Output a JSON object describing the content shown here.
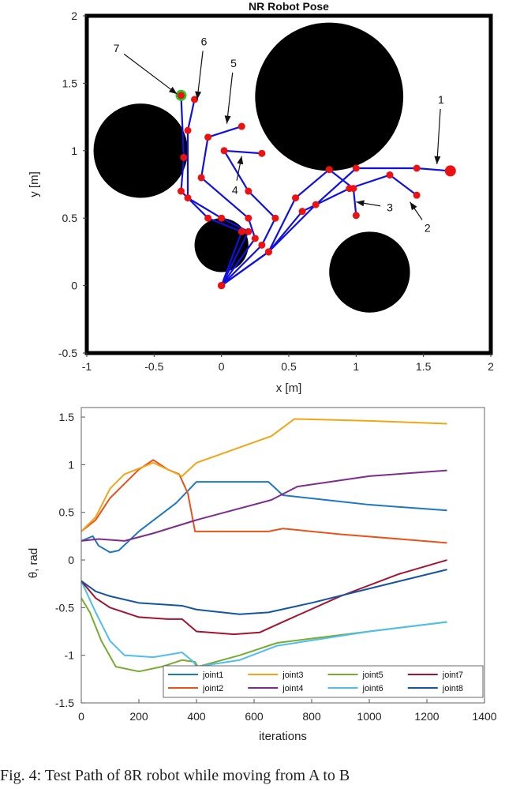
{
  "chart_data": [
    {
      "type": "scatter",
      "title": "NR Robot Pose",
      "xlabel": "x [m]",
      "ylabel": "y [m]",
      "xlim": [
        -1,
        2
      ],
      "ylim": [
        -0.5,
        2
      ],
      "xticks": [
        "-1",
        "-0.5",
        "0",
        "0.5",
        "1",
        "1.5",
        "2"
      ],
      "yticks": [
        "-0.5",
        "0",
        "0.5",
        "1",
        "1.5",
        "2"
      ],
      "grid": false,
      "obstacles": [
        {
          "x": 0.8,
          "y": 1.4,
          "r": 0.55
        },
        {
          "x": -0.6,
          "y": 1.0,
          "r": 0.35
        },
        {
          "x": 1.1,
          "y": 0.1,
          "r": 0.3
        },
        {
          "x": 0.0,
          "y": 0.3,
          "r": 0.2
        }
      ],
      "colors": {
        "obstacle": "#000000",
        "link": "#1010e0",
        "joint": "#ee1111",
        "goal": "#22cc22"
      },
      "poses": [
        {
          "label": "1",
          "points": [
            [
              0,
              0
            ],
            [
              0.35,
              0.25
            ],
            [
              0.7,
              0.6
            ],
            [
              1.0,
              0.87
            ],
            [
              1.45,
              0.87
            ],
            [
              1.7,
              0.85
            ]
          ]
        },
        {
          "label": "2",
          "points": [
            [
              0,
              0
            ],
            [
              0.35,
              0.25
            ],
            [
              0.6,
              0.55
            ],
            [
              0.95,
              0.72
            ],
            [
              1.25,
              0.82
            ],
            [
              1.45,
              0.67
            ]
          ]
        },
        {
          "label": "3",
          "points": [
            [
              0,
              0
            ],
            [
              0.35,
              0.25
            ],
            [
              0.55,
              0.65
            ],
            [
              0.8,
              0.86
            ],
            [
              0.98,
              0.72
            ],
            [
              1.0,
              0.52
            ]
          ]
        },
        {
          "label": "4",
          "points": [
            [
              0,
              0
            ],
            [
              0.3,
              0.3
            ],
            [
              0.4,
              0.5
            ],
            [
              0.2,
              0.7
            ],
            [
              0.02,
              1.0
            ],
            [
              0.3,
              0.98
            ]
          ]
        },
        {
          "label": "5",
          "points": [
            [
              0,
              0
            ],
            [
              0.25,
              0.35
            ],
            [
              0.2,
              0.5
            ],
            [
              -0.15,
              0.8
            ],
            [
              -0.1,
              1.1
            ],
            [
              0.15,
              1.18
            ]
          ]
        },
        {
          "label": "6",
          "points": [
            [
              0,
              0
            ],
            [
              0.2,
              0.4
            ],
            [
              0.0,
              0.5
            ],
            [
              -0.25,
              0.65
            ],
            [
              -0.25,
              1.15
            ],
            [
              -0.2,
              1.38
            ]
          ]
        },
        {
          "label": "7",
          "points": [
            [
              0,
              0
            ],
            [
              0.15,
              0.4
            ],
            [
              -0.1,
              0.5
            ],
            [
              -0.3,
              0.7
            ],
            [
              -0.28,
              0.95
            ],
            [
              -0.3,
              1.41
            ]
          ]
        }
      ],
      "annotations": [
        {
          "label": "1",
          "text_x": 1.63,
          "text_y": 1.35,
          "arrow_x": 1.6,
          "arrow_y": 0.9
        },
        {
          "label": "2",
          "text_x": 1.53,
          "text_y": 0.4,
          "arrow_x": 1.4,
          "arrow_y": 0.62
        },
        {
          "label": "3",
          "text_x": 1.25,
          "text_y": 0.55,
          "arrow_x": 1.0,
          "arrow_y": 0.62
        },
        {
          "label": "4",
          "text_x": 0.1,
          "text_y": 0.68,
          "arrow_x": 0.15,
          "arrow_y": 0.96
        },
        {
          "label": "5",
          "text_x": 0.09,
          "text_y": 1.62,
          "arrow_x": 0.04,
          "arrow_y": 1.2
        },
        {
          "label": "6",
          "text_x": -0.13,
          "text_y": 1.78,
          "arrow_x": -0.18,
          "arrow_y": 1.38
        },
        {
          "label": "7",
          "text_x": -0.78,
          "text_y": 1.73,
          "arrow_x": -0.33,
          "arrow_y": 1.42
        }
      ]
    },
    {
      "type": "line",
      "title": "",
      "xlabel": "iterations",
      "ylabel": "θ, rad",
      "xlim": [
        0,
        1400
      ],
      "ylim": [
        -1.5,
        1.6
      ],
      "xticks": [
        "0",
        "200",
        "400",
        "600",
        "800",
        "1000",
        "1200",
        "1400"
      ],
      "yticks": [
        "1.5",
        "1",
        "0.5",
        "0",
        "-0.5",
        "-1",
        "-1.5"
      ],
      "grid": false,
      "legend_position": "bottom-right",
      "series": [
        {
          "name": "joint1",
          "color": "#1f77c0",
          "points": [
            [
              0,
              0.2
            ],
            [
              40,
              0.25
            ],
            [
              60,
              0.15
            ],
            [
              100,
              0.08
            ],
            [
              130,
              0.1
            ],
            [
              200,
              0.3
            ],
            [
              330,
              0.6
            ],
            [
              400,
              0.82
            ],
            [
              650,
              0.82
            ],
            [
              700,
              0.68
            ],
            [
              1000,
              0.58
            ],
            [
              1270,
              0.52
            ]
          ]
        },
        {
          "name": "joint2",
          "color": "#e8531c",
          "points": [
            [
              0,
              0.3
            ],
            [
              50,
              0.42
            ],
            [
              100,
              0.65
            ],
            [
              200,
              0.95
            ],
            [
              250,
              1.05
            ],
            [
              300,
              0.95
            ],
            [
              340,
              0.9
            ],
            [
              370,
              0.7
            ],
            [
              395,
              0.3
            ],
            [
              650,
              0.3
            ],
            [
              700,
              0.33
            ],
            [
              900,
              0.27
            ],
            [
              1270,
              0.18
            ]
          ]
        },
        {
          "name": "joint3",
          "color": "#f2a516",
          "points": [
            [
              0,
              0.3
            ],
            [
              50,
              0.45
            ],
            [
              100,
              0.75
            ],
            [
              150,
              0.9
            ],
            [
              250,
              1.02
            ],
            [
              350,
              0.88
            ],
            [
              400,
              1.02
            ],
            [
              660,
              1.3
            ],
            [
              740,
              1.48
            ],
            [
              1000,
              1.46
            ],
            [
              1270,
              1.43
            ]
          ]
        },
        {
          "name": "joint4",
          "color": "#7e2a8e",
          "points": [
            [
              0,
              0.2
            ],
            [
              60,
              0.22
            ],
            [
              150,
              0.2
            ],
            [
              250,
              0.28
            ],
            [
              400,
              0.42
            ],
            [
              660,
              0.63
            ],
            [
              750,
              0.77
            ],
            [
              1000,
              0.88
            ],
            [
              1270,
              0.94
            ]
          ]
        },
        {
          "name": "joint5",
          "color": "#78ac30",
          "points": [
            [
              0,
              -0.4
            ],
            [
              30,
              -0.55
            ],
            [
              70,
              -0.85
            ],
            [
              120,
              -1.12
            ],
            [
              200,
              -1.17
            ],
            [
              280,
              -1.12
            ],
            [
              350,
              -1.05
            ],
            [
              395,
              -1.07
            ],
            [
              405,
              -1.12
            ],
            [
              550,
              -1.0
            ],
            [
              680,
              -0.87
            ],
            [
              1000,
              -0.75
            ],
            [
              1270,
              -0.65
            ]
          ]
        },
        {
          "name": "joint6",
          "color": "#4dbeee",
          "points": [
            [
              0,
              -0.22
            ],
            [
              50,
              -0.55
            ],
            [
              100,
              -0.85
            ],
            [
              150,
              -1.0
            ],
            [
              250,
              -1.02
            ],
            [
              350,
              -0.97
            ],
            [
              390,
              -1.07
            ],
            [
              400,
              -1.12
            ],
            [
              550,
              -1.05
            ],
            [
              680,
              -0.9
            ],
            [
              1000,
              -0.75
            ],
            [
              1270,
              -0.65
            ]
          ]
        },
        {
          "name": "joint7",
          "color": "#a2142f",
          "points": [
            [
              0,
              -0.22
            ],
            [
              50,
              -0.4
            ],
            [
              100,
              -0.5
            ],
            [
              200,
              -0.6
            ],
            [
              300,
              -0.62
            ],
            [
              350,
              -0.62
            ],
            [
              400,
              -0.75
            ],
            [
              530,
              -0.78
            ],
            [
              620,
              -0.76
            ],
            [
              700,
              -0.65
            ],
            [
              900,
              -0.38
            ],
            [
              1100,
              -0.15
            ],
            [
              1270,
              0.0
            ]
          ]
        },
        {
          "name": "joint8",
          "color": "#1454a0",
          "points": [
            [
              0,
              -0.22
            ],
            [
              50,
              -0.33
            ],
            [
              100,
              -0.38
            ],
            [
              200,
              -0.45
            ],
            [
              300,
              -0.47
            ],
            [
              350,
              -0.48
            ],
            [
              400,
              -0.52
            ],
            [
              550,
              -0.57
            ],
            [
              650,
              -0.55
            ],
            [
              800,
              -0.45
            ],
            [
              1000,
              -0.3
            ],
            [
              1270,
              -0.1
            ]
          ]
        }
      ]
    }
  ],
  "caption": "Fig. 4: Test Path of 8R robot while moving from A to B"
}
